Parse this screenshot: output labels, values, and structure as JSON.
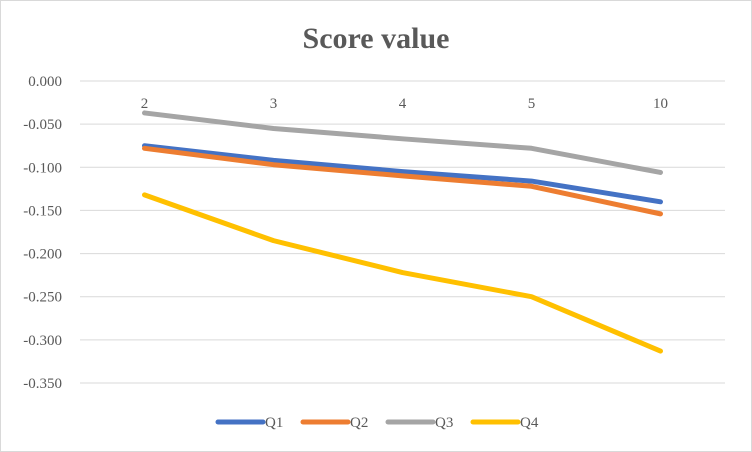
{
  "chart_data": {
    "type": "line",
    "title": "Score value",
    "xlabel": "",
    "ylabel": "",
    "categories": [
      "2",
      "3",
      "4",
      "5",
      "10"
    ],
    "ylim": [
      -0.35,
      0.0
    ],
    "yticks": [
      "0.000",
      "-0.050",
      "-0.100",
      "-0.150",
      "-0.200",
      "-0.250",
      "-0.300",
      "-0.350"
    ],
    "ytick_values": [
      0.0,
      -0.05,
      -0.1,
      -0.15,
      -0.2,
      -0.25,
      -0.3,
      -0.35
    ],
    "grid": true,
    "legend_position": "bottom",
    "series": [
      {
        "name": "Q1",
        "color": "#4472C4",
        "values": [
          -0.075,
          -0.092,
          -0.105,
          -0.116,
          -0.14
        ]
      },
      {
        "name": "Q2",
        "color": "#ED7D31",
        "values": [
          -0.078,
          -0.097,
          -0.11,
          -0.122,
          -0.154
        ]
      },
      {
        "name": "Q3",
        "color": "#A5A5A5",
        "values": [
          -0.037,
          -0.055,
          -0.067,
          -0.078,
          -0.106
        ]
      },
      {
        "name": "Q4",
        "color": "#FFC000",
        "values": [
          -0.132,
          -0.185,
          -0.222,
          -0.25,
          -0.313
        ]
      }
    ]
  }
}
